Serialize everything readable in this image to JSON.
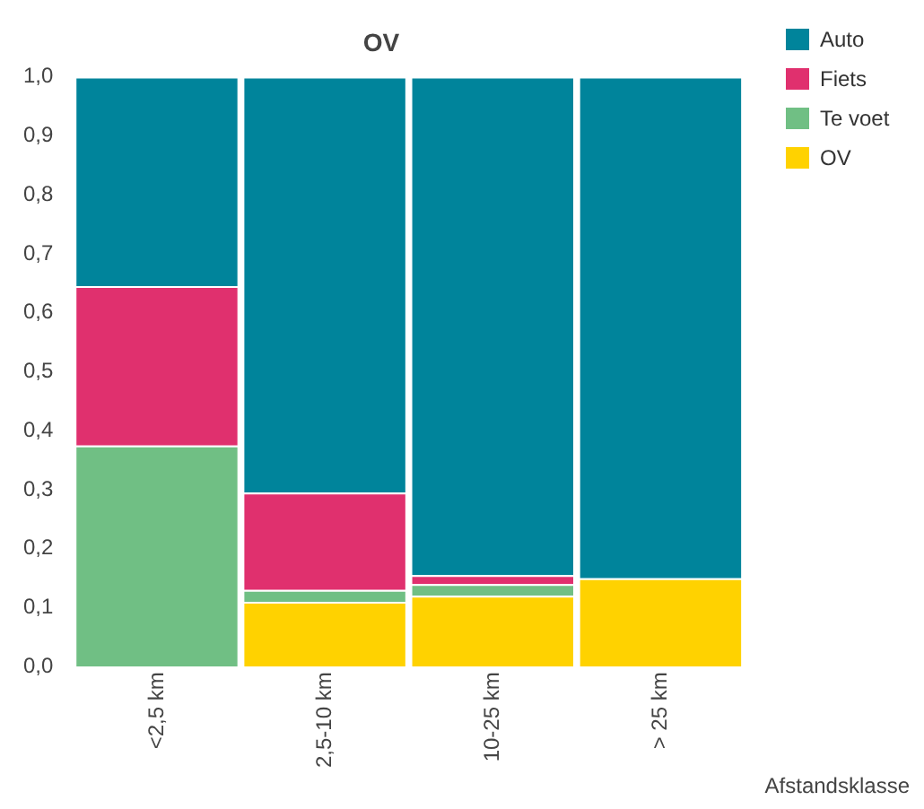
{
  "chart_data": {
    "type": "bar",
    "title": "OV",
    "xlabel": "Afstandsklasse",
    "stacked": true,
    "categories": [
      "<2,5 km",
      "2,5-10 km",
      "10-25 km",
      "> 25 km"
    ],
    "series": [
      {
        "name": "OV",
        "color": "#ffd200",
        "values": [
          0,
          0.11,
          0.12,
          0.15
        ]
      },
      {
        "name": "Te voet",
        "color": "#70bf84",
        "values": [
          0.375,
          0.02,
          0.02,
          0
        ]
      },
      {
        "name": "Fiets",
        "color": "#e0306e",
        "values": [
          0.27,
          0.165,
          0.015,
          0
        ]
      },
      {
        "name": "Auto",
        "color": "#00849b",
        "values": [
          0.355,
          0.705,
          0.845,
          0.85
        ]
      }
    ],
    "ylim": [
      0,
      1
    ],
    "yticks": [
      {
        "value": 0,
        "label": "0,0"
      },
      {
        "value": 0.1,
        "label": "0,1"
      },
      {
        "value": 0.2,
        "label": "0,2"
      },
      {
        "value": 0.3,
        "label": "0,3"
      },
      {
        "value": 0.4,
        "label": "0,4"
      },
      {
        "value": 0.5,
        "label": "0,5"
      },
      {
        "value": 0.6,
        "label": "0,6"
      },
      {
        "value": 0.7,
        "label": "0,7"
      },
      {
        "value": 0.8,
        "label": "0,8"
      },
      {
        "value": 0.9,
        "label": "0,9"
      },
      {
        "value": 1,
        "label": "1,0"
      }
    ],
    "grid": false,
    "legend": "top right"
  }
}
